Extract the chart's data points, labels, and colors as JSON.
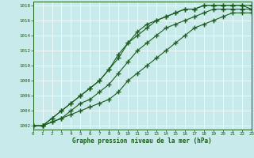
{
  "title": "Graphe pression niveau de la mer (hPa)",
  "bg_color": "#c8eaea",
  "grid_color": "#ffffff",
  "line_color": "#1a5c1a",
  "xlim": [
    0,
    23
  ],
  "ylim": [
    1001.5,
    1018.5
  ],
  "yticks": [
    1002,
    1004,
    1006,
    1008,
    1010,
    1012,
    1014,
    1016,
    1018
  ],
  "xticks": [
    0,
    1,
    2,
    3,
    4,
    5,
    6,
    7,
    8,
    9,
    10,
    11,
    12,
    13,
    14,
    15,
    16,
    17,
    18,
    19,
    20,
    21,
    22,
    23
  ],
  "series1": [
    1002,
    1002,
    1002.5,
    1003,
    1003.5,
    1004,
    1004.5,
    1005,
    1005.5,
    1006.5,
    1008,
    1009,
    1010,
    1011,
    1012,
    1013,
    1014,
    1015,
    1015.5,
    1016,
    1016.5,
    1017,
    1017,
    1017
  ],
  "series2": [
    1002,
    1002,
    1002.5,
    1003,
    1004,
    1005,
    1005.5,
    1006.5,
    1007.5,
    1009,
    1010.5,
    1012,
    1013,
    1014,
    1015,
    1015.5,
    1016,
    1016.5,
    1017,
    1017.5,
    1017.5,
    1017.5,
    1017.5,
    1017.5
  ],
  "series3": [
    1002,
    1002,
    1003,
    1004,
    1005,
    1006,
    1007,
    1008,
    1009.5,
    1011,
    1013,
    1014,
    1015,
    1016,
    1016.5,
    1017,
    1017.5,
    1017.5,
    1018,
    1018,
    1018,
    1018,
    1018,
    1018
  ],
  "series4": [
    1002,
    1002,
    1003,
    1004,
    1005,
    1006,
    1007,
    1008,
    1009.5,
    1011.5,
    1013,
    1014.5,
    1015.5,
    1016,
    1016.5,
    1017,
    1017.5,
    1017.5,
    1018,
    1018,
    1018,
    1018,
    1018,
    1017.5
  ]
}
